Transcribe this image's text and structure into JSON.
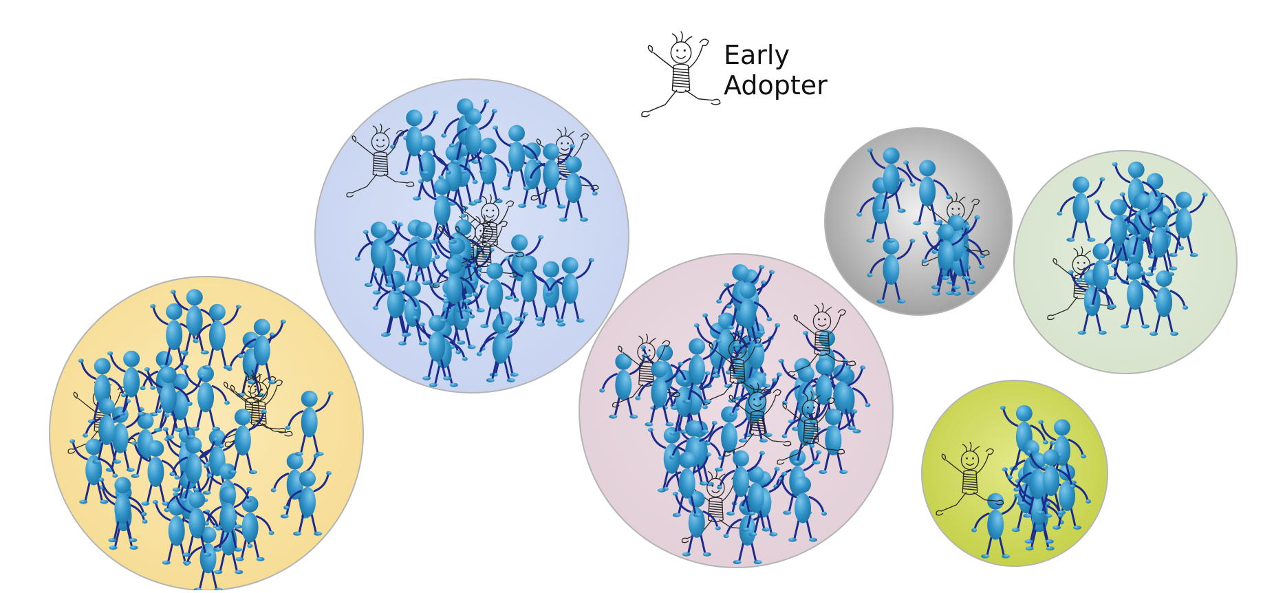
{
  "legend": {
    "line1": "Early",
    "line2": "Adopter",
    "icon": "sketch-stick-figure-icon"
  },
  "figure_icon": "blue-person-icon",
  "colors": {
    "person_fill": "#2f93c8",
    "person_highlight": "#7cc6ea",
    "person_limb": "#1c2c8c",
    "sketch_stroke": "#222222",
    "circle_border": "#b4b4b4"
  },
  "groups": [
    {
      "name": "group-yellow",
      "fill": "#f8e3a4",
      "gradient": [
        "#fbe9b5",
        "#f6dc93"
      ]
    },
    {
      "name": "group-blue",
      "fill": "#cfd9f3",
      "gradient": [
        "#d8e1f6",
        "#c7d3f0"
      ]
    },
    {
      "name": "group-pink",
      "fill": "#e7d5de",
      "gradient": [
        "#eddce4",
        "#e2cfd8"
      ]
    },
    {
      "name": "group-gray",
      "fill": "#bdbdbd",
      "gradient": [
        "#efefef",
        "#9a9a9a"
      ]
    },
    {
      "name": "group-green",
      "fill": "#dde8d5",
      "gradient": [
        "#e3ecdc",
        "#d6e3cc"
      ]
    },
    {
      "name": "group-olive",
      "fill": "#d4dd6a",
      "gradient": [
        "#e2e888",
        "#c3cf45"
      ]
    }
  ]
}
